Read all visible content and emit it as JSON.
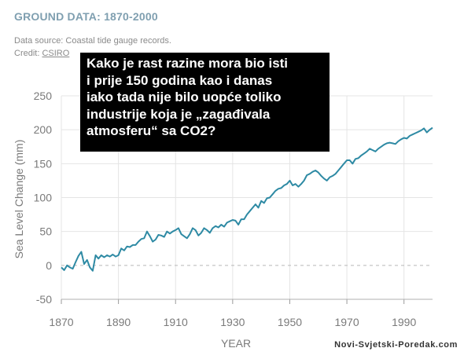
{
  "header": {
    "title": "GROUND DATA: 1870-2000",
    "source": "Data source: Coastal tide gauge records.",
    "credit_prefix": "Credit: ",
    "credit_link": "CSIRO"
  },
  "overlay": {
    "lines": [
      "Kako je rast razine mora bio isti",
      "i prije 150 godina kao i danas",
      "iako tada nije bilo uopće toliko",
      "industrije koja je „zagađivala",
      "atmosferu“ sa CO2?"
    ]
  },
  "watermark": "Novi-Svjetski-Poredak.com",
  "colors": {
    "line": "#2e8aa4",
    "grid": "#e4e4e4",
    "zero_line": "#b8b8b8",
    "overlay_bg": "#000000"
  },
  "chart_data": {
    "type": "line",
    "title": "",
    "xlabel": "YEAR",
    "ylabel": "Sea Level Change (mm)",
    "xlim": [
      1870,
      2000
    ],
    "ylim": [
      -50,
      250
    ],
    "xticks": [
      1870,
      1890,
      1910,
      1930,
      1950,
      1970,
      1990
    ],
    "yticks": [
      -50,
      0,
      50,
      100,
      150,
      200,
      250
    ],
    "grid": true,
    "zero_line_dashed": true,
    "legend": "none",
    "series": [
      {
        "x": [
          1870,
          1871,
          1872,
          1873,
          1874,
          1875,
          1876,
          1877,
          1878,
          1879,
          1880,
          1881,
          1882,
          1883,
          1884,
          1885,
          1886,
          1887,
          1888,
          1889,
          1890,
          1891,
          1892,
          1893,
          1894,
          1895,
          1896,
          1897,
          1898,
          1899,
          1900,
          1901,
          1902,
          1903,
          1904,
          1905,
          1906,
          1907,
          1908,
          1909,
          1910,
          1911,
          1912,
          1913,
          1914,
          1915,
          1916,
          1917,
          1918,
          1919,
          1920,
          1921,
          1922,
          1923,
          1924,
          1925,
          1926,
          1927,
          1928,
          1929,
          1930,
          1931,
          1932,
          1933,
          1934,
          1935,
          1936,
          1937,
          1938,
          1939,
          1940,
          1941,
          1942,
          1943,
          1944,
          1945,
          1946,
          1947,
          1948,
          1949,
          1950,
          1951,
          1952,
          1953,
          1954,
          1955,
          1956,
          1957,
          1958,
          1959,
          1960,
          1961,
          1962,
          1963,
          1964,
          1965,
          1966,
          1967,
          1968,
          1969,
          1970,
          1971,
          1972,
          1973,
          1974,
          1975,
          1976,
          1977,
          1978,
          1979,
          1980,
          1981,
          1982,
          1983,
          1984,
          1985,
          1986,
          1987,
          1988,
          1989,
          1990,
          1991,
          1992,
          1993,
          1994,
          1995,
          1996,
          1997,
          1998,
          1999,
          2000
        ],
        "values": [
          -3,
          -7,
          0,
          -3,
          -5,
          5,
          14,
          20,
          2,
          8,
          -3,
          -8,
          15,
          10,
          15,
          12,
          15,
          13,
          16,
          13,
          15,
          25,
          22,
          28,
          27,
          30,
          30,
          35,
          39,
          40,
          50,
          43,
          35,
          38,
          45,
          44,
          42,
          50,
          47,
          50,
          52,
          55,
          46,
          43,
          40,
          46,
          55,
          52,
          44,
          48,
          55,
          52,
          48,
          55,
          58,
          56,
          60,
          57,
          63,
          65,
          67,
          66,
          60,
          68,
          68,
          75,
          80,
          85,
          90,
          85,
          95,
          92,
          99,
          100,
          105,
          110,
          113,
          114,
          118,
          120,
          125,
          118,
          120,
          116,
          120,
          125,
          133,
          135,
          138,
          140,
          137,
          132,
          128,
          125,
          130,
          132,
          135,
          140,
          145,
          150,
          155,
          155,
          150,
          157,
          158,
          162,
          165,
          168,
          172,
          170,
          168,
          172,
          175,
          178,
          180,
          181,
          180,
          179,
          183,
          186,
          188,
          187,
          191,
          193,
          195,
          197,
          199,
          202,
          196,
          200,
          203
        ]
      }
    ]
  }
}
